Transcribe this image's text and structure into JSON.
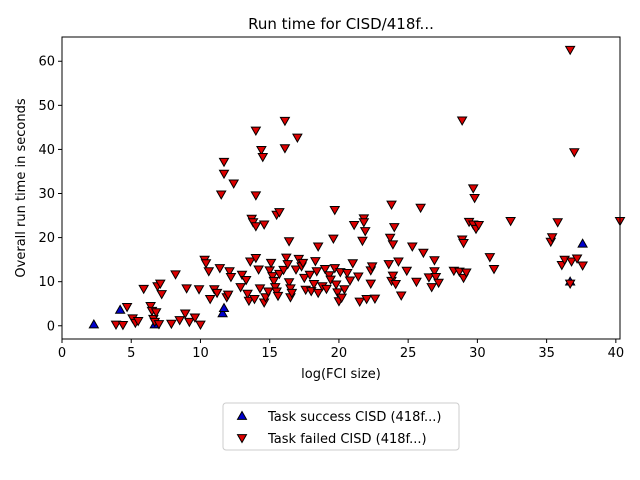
{
  "chart_data": {
    "type": "scatter",
    "title": "Run time for CISD/418f...",
    "xlabel": "log(FCI size)",
    "ylabel": "Overall run time in seconds",
    "xlim": [
      0,
      40.3
    ],
    "ylim": [
      -3,
      65.5
    ],
    "xticks": [
      0,
      5,
      10,
      15,
      20,
      25,
      30,
      35,
      40
    ],
    "yticks": [
      0,
      10,
      20,
      30,
      40,
      50,
      60
    ],
    "grid": false,
    "legend_placement": "bottom-center, below plot",
    "series": [
      {
        "name": "Task success CISD (418f...)",
        "marker": "triangle-up",
        "color": "#0000cc",
        "points": [
          [
            2.3,
            0.3
          ],
          [
            4.2,
            3.6
          ],
          [
            6.7,
            0.3
          ],
          [
            11.6,
            2.8
          ],
          [
            11.7,
            4.0
          ],
          [
            36.7,
            10.0
          ],
          [
            37.6,
            18.6
          ]
        ]
      },
      {
        "name": "Task failed CISD (418f...)",
        "marker": "triangle-down",
        "color": "#dd0000",
        "points": [
          [
            3.9,
            0.3
          ],
          [
            4.4,
            0.2
          ],
          [
            4.7,
            4.3
          ],
          [
            5.1,
            1.7
          ],
          [
            5.3,
            0.7
          ],
          [
            5.5,
            1.1
          ],
          [
            5.9,
            8.4
          ],
          [
            6.4,
            4.5
          ],
          [
            6.5,
            3.4
          ],
          [
            6.6,
            1.6
          ],
          [
            6.7,
            0.9
          ],
          [
            6.8,
            3.1
          ],
          [
            6.9,
            9.0
          ],
          [
            7.0,
            0.4
          ],
          [
            7.1,
            9.6
          ],
          [
            7.2,
            7.2
          ],
          [
            7.9,
            0.5
          ],
          [
            8.2,
            11.7
          ],
          [
            8.5,
            1.3
          ],
          [
            8.9,
            2.8
          ],
          [
            9.0,
            8.5
          ],
          [
            9.2,
            0.9
          ],
          [
            9.6,
            1.9
          ],
          [
            9.9,
            8.3
          ],
          [
            10.0,
            0.3
          ],
          [
            10.3,
            15.0
          ],
          [
            10.4,
            14.2
          ],
          [
            10.6,
            12.4
          ],
          [
            10.7,
            6.1
          ],
          [
            11.0,
            8.3
          ],
          [
            11.2,
            7.5
          ],
          [
            11.4,
            13.1
          ],
          [
            11.5,
            29.8
          ],
          [
            11.7,
            37.2
          ],
          [
            11.7,
            34.5
          ],
          [
            11.9,
            6.5
          ],
          [
            12.0,
            7.1
          ],
          [
            12.1,
            12.4
          ],
          [
            12.2,
            11.1
          ],
          [
            12.4,
            32.3
          ],
          [
            12.9,
            8.8
          ],
          [
            13.0,
            11.6
          ],
          [
            13.3,
            10.4
          ],
          [
            13.4,
            7.3
          ],
          [
            13.5,
            5.7
          ],
          [
            13.6,
            14.6
          ],
          [
            13.7,
            24.3
          ],
          [
            13.8,
            23.5
          ],
          [
            13.9,
            6.1
          ],
          [
            14.0,
            15.4
          ],
          [
            14.0,
            22.6
          ],
          [
            14.0,
            29.6
          ],
          [
            14.0,
            44.3
          ],
          [
            14.2,
            12.8
          ],
          [
            14.3,
            8.5
          ],
          [
            14.4,
            39.9
          ],
          [
            14.5,
            38.3
          ],
          [
            14.6,
            23.0
          ],
          [
            14.6,
            5.3
          ],
          [
            14.7,
            6.5
          ],
          [
            14.9,
            7.8
          ],
          [
            15.0,
            12.6
          ],
          [
            15.1,
            14.3
          ],
          [
            15.2,
            11.3
          ],
          [
            15.3,
            10.2
          ],
          [
            15.4,
            8.8
          ],
          [
            15.5,
            7.8
          ],
          [
            15.6,
            6.8
          ],
          [
            15.7,
            11.8
          ],
          [
            15.5,
            25.2
          ],
          [
            15.7,
            25.8
          ],
          [
            16.0,
            12.7
          ],
          [
            16.1,
            46.5
          ],
          [
            16.1,
            40.3
          ],
          [
            16.2,
            15.5
          ],
          [
            16.3,
            14.0
          ],
          [
            16.4,
            19.2
          ],
          [
            16.4,
            9.9
          ],
          [
            16.5,
            8.5
          ],
          [
            16.5,
            6.5
          ],
          [
            16.6,
            7.5
          ],
          [
            16.9,
            12.8
          ],
          [
            17.0,
            42.7
          ],
          [
            17.1,
            15.2
          ],
          [
            17.3,
            13.5
          ],
          [
            17.4,
            14.3
          ],
          [
            17.5,
            10.9
          ],
          [
            17.6,
            8.2
          ],
          [
            17.9,
            11.6
          ],
          [
            18.0,
            7.9
          ],
          [
            18.2,
            9.5
          ],
          [
            18.3,
            14.7
          ],
          [
            18.4,
            12.4
          ],
          [
            18.5,
            18.0
          ],
          [
            18.5,
            7.5
          ],
          [
            18.8,
            9.0
          ],
          [
            19.0,
            12.9
          ],
          [
            19.1,
            8.4
          ],
          [
            19.3,
            11.5
          ],
          [
            19.4,
            10.5
          ],
          [
            19.6,
            19.8
          ],
          [
            19.7,
            13.1
          ],
          [
            19.7,
            26.3
          ],
          [
            19.8,
            9.4
          ],
          [
            19.9,
            7.6
          ],
          [
            20.0,
            5.6
          ],
          [
            20.1,
            12.2
          ],
          [
            20.2,
            6.4
          ],
          [
            20.4,
            8.3
          ],
          [
            20.6,
            12.0
          ],
          [
            20.8,
            10.3
          ],
          [
            21.0,
            14.2
          ],
          [
            21.1,
            22.9
          ],
          [
            21.4,
            11.2
          ],
          [
            21.5,
            5.5
          ],
          [
            21.7,
            19.3
          ],
          [
            21.8,
            24.4
          ],
          [
            21.9,
            21.5
          ],
          [
            21.8,
            23.5
          ],
          [
            22.0,
            6.1
          ],
          [
            22.3,
            9.6
          ],
          [
            22.3,
            12.6
          ],
          [
            22.4,
            13.5
          ],
          [
            22.6,
            6.2
          ],
          [
            23.6,
            14.0
          ],
          [
            23.7,
            20.0
          ],
          [
            23.8,
            10.2
          ],
          [
            23.8,
            27.5
          ],
          [
            23.9,
            11.4
          ],
          [
            23.9,
            18.5
          ],
          [
            24.0,
            22.4
          ],
          [
            24.1,
            9.5
          ],
          [
            24.3,
            14.6
          ],
          [
            24.5,
            6.9
          ],
          [
            24.9,
            12.5
          ],
          [
            25.3,
            18.0
          ],
          [
            25.6,
            10.0
          ],
          [
            25.9,
            26.8
          ],
          [
            26.1,
            16.6
          ],
          [
            26.5,
            11.0
          ],
          [
            26.7,
            8.8
          ],
          [
            26.9,
            12.4
          ],
          [
            26.9,
            14.9
          ],
          [
            27.0,
            11.1
          ],
          [
            27.2,
            9.8
          ],
          [
            28.3,
            12.5
          ],
          [
            28.7,
            12.3
          ],
          [
            28.9,
            19.6
          ],
          [
            28.9,
            46.6
          ],
          [
            29.0,
            10.9
          ],
          [
            29.0,
            18.8
          ],
          [
            29.2,
            12.1
          ],
          [
            29.4,
            23.6
          ],
          [
            29.7,
            31.2
          ],
          [
            29.7,
            23.0
          ],
          [
            29.8,
            29.0
          ],
          [
            29.9,
            22.0
          ],
          [
            30.1,
            22.9
          ],
          [
            30.9,
            15.6
          ],
          [
            31.2,
            12.9
          ],
          [
            32.4,
            23.8
          ],
          [
            35.3,
            19.1
          ],
          [
            35.4,
            20.1
          ],
          [
            35.8,
            23.5
          ],
          [
            36.1,
            13.8
          ],
          [
            36.3,
            15.0
          ],
          [
            36.7,
            62.6
          ],
          [
            36.7,
            9.6
          ],
          [
            36.8,
            14.6
          ],
          [
            37.0,
            39.4
          ],
          [
            37.2,
            15.3
          ],
          [
            37.6,
            13.7
          ],
          [
            40.3,
            23.8
          ]
        ]
      }
    ]
  }
}
